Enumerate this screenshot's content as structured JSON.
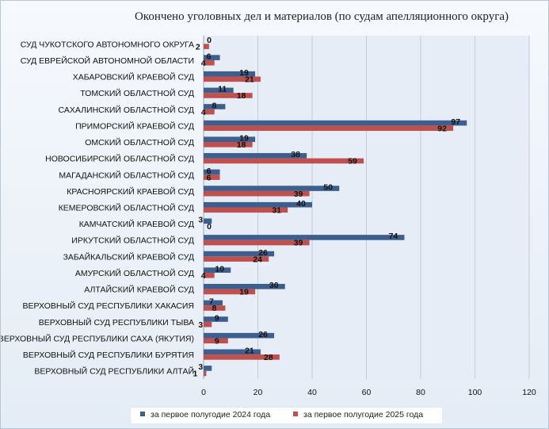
{
  "chart_data": {
    "type": "bar",
    "orientation": "horizontal",
    "title": "Окончено уголовных дел и материалов (по судам апелляционного округа)",
    "categories": [
      "СУД ЧУКОТСКОГО АВТОНОМНОГО ОКРУГА",
      "СУД ЕВРЕЙСКОЙ АВТОНОМНОЙ ОБЛАСТИ",
      "ХАБАРОВСКИЙ КРАЕВОЙ СУД",
      "ТОМСКИЙ ОБЛАСТНОЙ СУД",
      "САХАЛИНСКИЙ ОБЛАСТНОЙ СУД",
      "ПРИМОРСКИЙ КРАЕВОЙ СУД",
      "ОМСКИЙ ОБЛАСТНОЙ СУД",
      "НОВОСИБИРСКИЙ ОБЛАСТНОЙ СУД",
      "МАГАДАНСКИЙ ОБЛАСТНОЙ СУД",
      "КРАСНОЯРСКИЙ КРАЕВОЙ СУД",
      "КЕМЕРОВСКИЙ ОБЛАСТНОЙ СУД",
      "КАМЧАТСКИЙ КРАЕВОЙ СУД",
      "ИРКУТСКИЙ ОБЛАСТНОЙ СУД",
      "ЗАБАЙКАЛЬСКИЙ КРАЕВОЙ СУД",
      "АМУРСКИЙ ОБЛАСТНОЙ СУД",
      "АЛТАЙСКИЙ КРАЕВОЙ СУД",
      "ВЕРХОВНЫЙ СУД РЕСПУБЛИКИ ХАКАСИЯ",
      "ВЕРХОВНЫЙ СУД РЕСПУБЛИКИ ТЫВА",
      "ВЕРХОВНЫЙ СУД РЕСПУБЛИКИ САХА (ЯКУТИЯ)",
      "ВЕРХОВНЫЙ СУД РЕСПУБЛИКИ БУРЯТИЯ",
      "ВЕРХОВНЫЙ СУД РЕСПУБЛИКИ АЛТАЙ"
    ],
    "series": [
      {
        "name": "за первое полугодие 2024 года",
        "color": "#3d5f8e",
        "values": [
          0,
          6,
          19,
          11,
          8,
          97,
          19,
          38,
          6,
          50,
          40,
          3,
          74,
          26,
          10,
          30,
          7,
          9,
          26,
          21,
          3
        ]
      },
      {
        "name": "за первое полугодие 2025 года",
        "color": "#c0504d",
        "values": [
          2,
          4,
          21,
          18,
          4,
          92,
          18,
          59,
          6,
          39,
          31,
          0,
          39,
          24,
          4,
          19,
          8,
          3,
          9,
          28,
          1
        ]
      }
    ],
    "xlim": [
      0,
      120
    ],
    "xticks": [
      0,
      20,
      40,
      60,
      80,
      100,
      120
    ],
    "grid": "vertical",
    "legend": "bottom"
  }
}
